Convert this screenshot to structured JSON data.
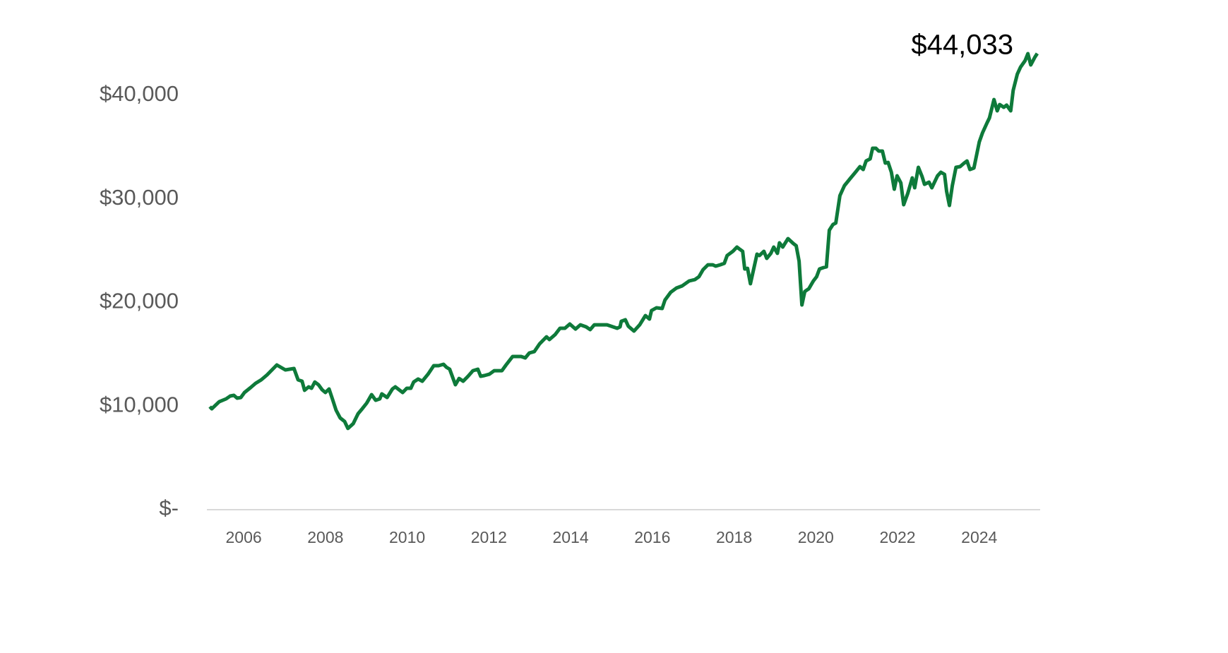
{
  "chart_data": {
    "type": "line",
    "last_value_label": "$44,033",
    "xlim": [
      2005.1,
      2025.49
    ],
    "xticks": [
      2006,
      2008,
      2010,
      2012,
      2014,
      2016,
      2018,
      2020,
      2022,
      2024
    ],
    "ylim": [
      0,
      45000
    ],
    "yticks": [
      {
        "value": 0,
        "label": "$-"
      },
      {
        "value": 10000,
        "label": "$10,000"
      },
      {
        "value": 20000,
        "label": "$20,000"
      },
      {
        "value": 30000,
        "label": "$30,000"
      },
      {
        "value": 40000,
        "label": "$40,000"
      }
    ],
    "grid": false,
    "series": [
      {
        "color": "#0e7a3a",
        "x": [
          2005.17,
          2005.22,
          2005.4,
          2005.57,
          2005.67,
          2005.76,
          2005.84,
          2005.93,
          2006.02,
          2006.17,
          2006.29,
          2006.43,
          2006.57,
          2006.81,
          2007.02,
          2007.23,
          2007.33,
          2007.43,
          2007.49,
          2007.59,
          2007.66,
          2007.74,
          2007.83,
          2007.92,
          2008.0,
          2008.09,
          2008.17,
          2008.26,
          2008.36,
          2008.47,
          2008.55,
          2008.68,
          2008.8,
          2008.9,
          2009.01,
          2009.13,
          2009.23,
          2009.33,
          2009.38,
          2009.51,
          2009.64,
          2009.71,
          2009.89,
          2009.99,
          2010.09,
          2010.16,
          2010.27,
          2010.37,
          2010.51,
          2010.65,
          2010.77,
          2010.89,
          2010.96,
          2011.04,
          2011.18,
          2011.27,
          2011.37,
          2011.49,
          2011.61,
          2011.73,
          2011.8,
          2011.89,
          2012.01,
          2012.13,
          2012.32,
          2012.42,
          2012.58,
          2012.79,
          2012.89,
          2012.99,
          2013.11,
          2013.24,
          2013.41,
          2013.48,
          2013.62,
          2013.74,
          2013.86,
          2013.98,
          2014.12,
          2014.24,
          2014.38,
          2014.48,
          2014.58,
          2014.89,
          2015.14,
          2015.21,
          2015.24,
          2015.34,
          2015.41,
          2015.55,
          2015.69,
          2015.83,
          2015.93,
          2015.98,
          2016.1,
          2016.24,
          2016.31,
          2016.45,
          2016.59,
          2016.73,
          2016.9,
          2017.04,
          2017.14,
          2017.24,
          2017.36,
          2017.48,
          2017.55,
          2017.66,
          2017.76,
          2017.83,
          2017.97,
          2018.07,
          2018.14,
          2018.21,
          2018.26,
          2018.33,
          2018.4,
          2018.56,
          2018.62,
          2018.73,
          2018.8,
          2018.9,
          2018.97,
          2019.06,
          2019.11,
          2019.19,
          2019.32,
          2019.45,
          2019.52,
          2019.59,
          2019.66,
          2019.73,
          2019.83,
          2019.94,
          2020.02,
          2020.09,
          2020.19,
          2020.26,
          2020.33,
          2020.42,
          2020.49,
          2020.59,
          2020.7,
          2020.84,
          2020.97,
          2021.08,
          2021.16,
          2021.23,
          2021.33,
          2021.39,
          2021.47,
          2021.54,
          2021.63,
          2021.7,
          2021.77,
          2021.85,
          2021.92,
          2021.99,
          2022.08,
          2022.15,
          2022.25,
          2022.36,
          2022.42,
          2022.51,
          2022.6,
          2022.66,
          2022.77,
          2022.84,
          2022.98,
          2023.06,
          2023.15,
          2023.2,
          2023.27,
          2023.34,
          2023.43,
          2023.53,
          2023.63,
          2023.7,
          2023.77,
          2023.87,
          2024.0,
          2024.08,
          2024.19,
          2024.25,
          2024.36,
          2024.44,
          2024.5,
          2024.6,
          2024.67,
          2024.77,
          2024.83,
          2024.93,
          2025.01,
          2025.12,
          2025.19,
          2025.26,
          2025.36,
          2025.42
        ],
        "values": [
          9950,
          9740,
          10420,
          10700,
          10970,
          11040,
          10770,
          10830,
          11310,
          11790,
          12200,
          12540,
          13010,
          13970,
          13490,
          13630,
          12540,
          12400,
          11520,
          11860,
          11720,
          12330,
          12060,
          11580,
          11310,
          11650,
          10700,
          9610,
          8860,
          8520,
          7840,
          8310,
          9270,
          9740,
          10290,
          11110,
          10560,
          10700,
          11180,
          10830,
          11650,
          11860,
          11310,
          11720,
          11720,
          12330,
          12610,
          12400,
          13080,
          13900,
          13900,
          14040,
          13760,
          13560,
          12060,
          12670,
          12400,
          12880,
          13420,
          13560,
          12880,
          12950,
          13080,
          13420,
          13420,
          13970,
          14790,
          14790,
          14650,
          15130,
          15260,
          16010,
          16690,
          16420,
          16900,
          17510,
          17510,
          17920,
          17440,
          17850,
          17650,
          17380,
          17850,
          17850,
          17510,
          17650,
          18190,
          18330,
          17720,
          17240,
          17850,
          18740,
          18400,
          19220,
          19490,
          19420,
          20240,
          20990,
          21400,
          21600,
          22080,
          22210,
          22490,
          23170,
          23640,
          23640,
          23510,
          23640,
          23780,
          24530,
          24940,
          25350,
          25140,
          24940,
          23240,
          23300,
          21810,
          24670,
          24530,
          24940,
          24260,
          24740,
          25350,
          24740,
          25760,
          25350,
          26170,
          25690,
          25480,
          23990,
          19760,
          21060,
          21330,
          22080,
          22490,
          23240,
          23370,
          23440,
          26980,
          27530,
          27670,
          30320,
          31280,
          31960,
          32570,
          33120,
          32840,
          33660,
          33870,
          34890,
          34890,
          34620,
          34620,
          33460,
          33520,
          32570,
          30940,
          32230,
          31550,
          29440,
          30530,
          32030,
          31070,
          33050,
          32160,
          31410,
          31620,
          31070,
          32230,
          32570,
          32370,
          30730,
          29370,
          31280,
          33050,
          33120,
          33460,
          33660,
          32840,
          32980,
          35500,
          36390,
          37340,
          37820,
          39590,
          38500,
          39110,
          38840,
          39050,
          38500,
          40480,
          42040,
          42720,
          43340,
          44020,
          42930,
          43680,
          44033
        ]
      }
    ]
  }
}
